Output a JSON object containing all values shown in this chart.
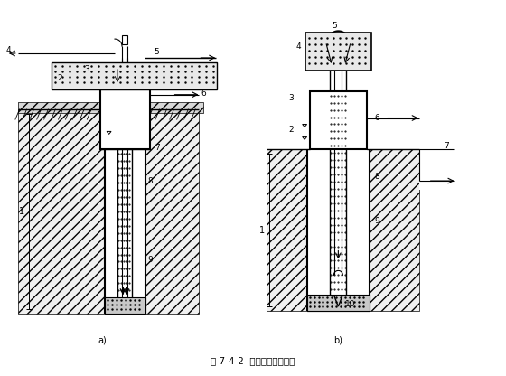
{
  "title": "图 7-4-2  吸泥机清孔示意图",
  "bg_color": "#ffffff",
  "fig_width": 5.6,
  "fig_height": 4.16,
  "dpi": 100,
  "soil_color": "#cccccc",
  "concrete_color": "#dddddd",
  "water_color": "#e8f0f8"
}
